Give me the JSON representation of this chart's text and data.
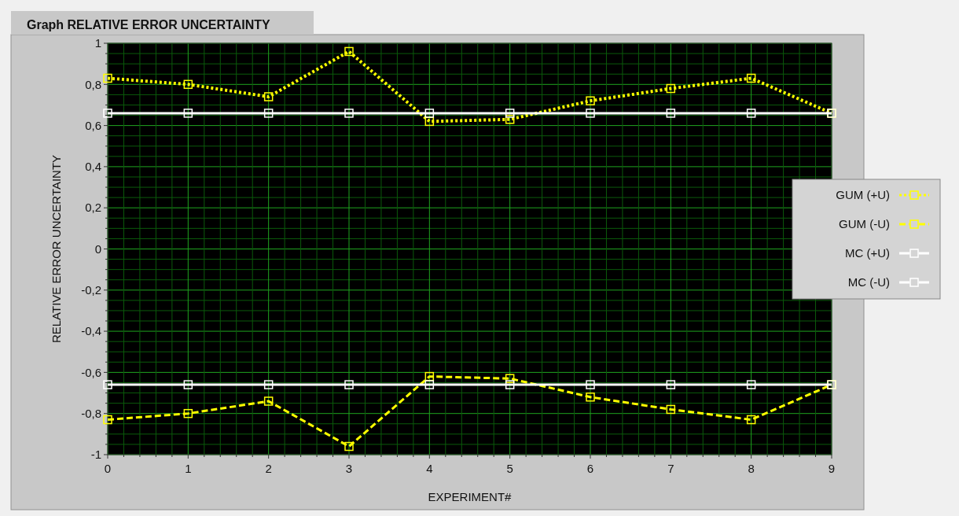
{
  "chart_data": {
    "type": "line",
    "title": "Graph RELATIVE ERROR UNCERTAINTY",
    "xlabel": "EXPERIMENT#",
    "ylabel": "RELATIVE ERROR UNCERTAINTY",
    "x": [
      0,
      1,
      2,
      3,
      4,
      5,
      6,
      7,
      8,
      9
    ],
    "xlim": [
      0,
      9
    ],
    "xticks": [
      0,
      {
        "value": 0.2,
        "label": null
      },
      {
        "value": 0.4,
        "label": null
      },
      {
        "value": 0.6,
        "label": null
      },
      {
        "value": 0.8,
        "label": null
      },
      1,
      {
        "value": 1.2,
        "label": null
      },
      {
        "value": 1.4,
        "label": null
      },
      {
        "value": 1.6,
        "label": null
      },
      {
        "value": 1.8,
        "label": null
      },
      2,
      {
        "value": 2.2,
        "label": null
      },
      {
        "value": 2.4,
        "label": null
      },
      {
        "value": 2.6,
        "label": null
      },
      {
        "value": 2.8,
        "label": null
      },
      3,
      {
        "value": 3.2,
        "label": null
      },
      {
        "value": 3.4,
        "label": null
      },
      {
        "value": 3.6,
        "label": null
      },
      {
        "value": 3.8,
        "label": null
      },
      4,
      {
        "value": 4.2,
        "label": null
      },
      {
        "value": 4.4,
        "label": null
      },
      {
        "value": 4.6,
        "label": null
      },
      {
        "value": 4.8,
        "label": null
      },
      5,
      {
        "value": 5.2,
        "label": null
      },
      {
        "value": 5.4,
        "label": null
      },
      {
        "value": 5.6,
        "label": null
      },
      {
        "value": 5.8,
        "label": null
      },
      6,
      {
        "value": 6.2,
        "label": null
      },
      {
        "value": 6.4,
        "label": null
      },
      {
        "value": 6.6,
        "label": null
      },
      {
        "value": 6.8,
        "label": null
      },
      7,
      {
        "value": 7.2,
        "label": null
      },
      {
        "value": 7.4,
        "label": null
      },
      {
        "value": 7.6,
        "label": null
      },
      {
        "value": 7.8,
        "label": null
      },
      8,
      {
        "value": 8.2,
        "label": null
      },
      {
        "value": 8.4,
        "label": null
      },
      {
        "value": 8.6,
        "label": null
      },
      {
        "value": 8.8,
        "label": null
      },
      9
    ],
    "ylim": [
      -1,
      1
    ],
    "yticks": [
      {
        "value": -1,
        "label": "-1"
      },
      {
        "value": -0.95,
        "label": null
      },
      {
        "value": -0.9,
        "label": null
      },
      {
        "value": -0.85,
        "label": null
      },
      {
        "value": -0.8,
        "label": "-0,8"
      },
      {
        "value": -0.75,
        "label": null
      },
      {
        "value": -0.7,
        "label": null
      },
      {
        "value": -0.65,
        "label": null
      },
      {
        "value": -0.6,
        "label": "-0,6"
      },
      {
        "value": -0.55,
        "label": null
      },
      {
        "value": -0.5,
        "label": null
      },
      {
        "value": -0.45,
        "label": null
      },
      {
        "value": -0.4,
        "label": "-0,4"
      },
      {
        "value": -0.35,
        "label": null
      },
      {
        "value": -0.3,
        "label": null
      },
      {
        "value": -0.25,
        "label": null
      },
      {
        "value": -0.2,
        "label": "-0,2"
      },
      {
        "value": -0.15,
        "label": null
      },
      {
        "value": -0.1,
        "label": null
      },
      {
        "value": -0.05,
        "label": null
      },
      {
        "value": 0,
        "label": "0"
      },
      {
        "value": 0.05,
        "label": null
      },
      {
        "value": 0.1,
        "label": null
      },
      {
        "value": 0.15,
        "label": null
      },
      {
        "value": 0.2,
        "label": "0,2"
      },
      {
        "value": 0.25,
        "label": null
      },
      {
        "value": 0.3,
        "label": null
      },
      {
        "value": 0.35,
        "label": null
      },
      {
        "value": 0.4,
        "label": "0,4"
      },
      {
        "value": 0.45,
        "label": null
      },
      {
        "value": 0.5,
        "label": null
      },
      {
        "value": 0.55,
        "label": null
      },
      {
        "value": 0.6,
        "label": "0,6"
      },
      {
        "value": 0.65,
        "label": null
      },
      {
        "value": 0.7,
        "label": null
      },
      {
        "value": 0.75,
        "label": null
      },
      {
        "value": 0.8,
        "label": "0,8"
      },
      {
        "value": 0.85,
        "label": null
      },
      {
        "value": 0.9,
        "label": null
      },
      {
        "value": 0.95,
        "label": null
      },
      {
        "value": 1,
        "label": "1"
      }
    ],
    "grid": true,
    "legend": "right",
    "marker": "square",
    "series": [
      {
        "name": "GUM (+U)",
        "color": "#ffff00",
        "line_style": "dotted",
        "values": [
          0.83,
          0.8,
          0.74,
          0.96,
          0.62,
          0.63,
          0.72,
          0.78,
          0.83,
          0.66
        ]
      },
      {
        "name": "GUM (-U)",
        "color": "#ffff00",
        "line_style": "dashed",
        "values": [
          -0.83,
          -0.8,
          -0.74,
          -0.96,
          -0.62,
          -0.63,
          -0.72,
          -0.78,
          -0.83,
          -0.66
        ]
      },
      {
        "name": "MC (+U)",
        "color": "#ffffff",
        "line_style": "solid",
        "values": [
          0.66,
          0.66,
          0.66,
          0.66,
          0.66,
          0.66,
          0.66,
          0.66,
          0.66,
          0.66
        ]
      },
      {
        "name": "MC (-U)",
        "color": "#ffffff",
        "line_style": "solid",
        "values": [
          -0.66,
          -0.66,
          -0.66,
          -0.66,
          -0.66,
          -0.66,
          -0.66,
          -0.66,
          -0.66,
          -0.66
        ]
      }
    ]
  }
}
